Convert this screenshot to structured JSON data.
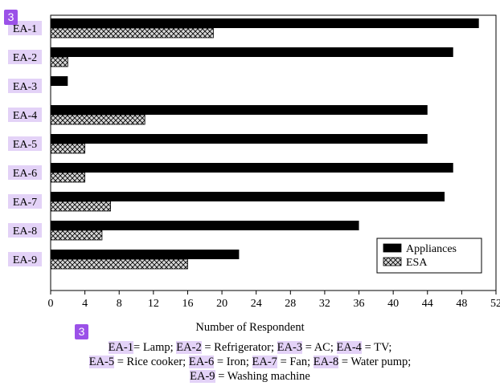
{
  "chart_data": {
    "type": "bar",
    "orientation": "horizontal",
    "categories": [
      "EA-1",
      "EA-2",
      "EA-3",
      "EA-4",
      "EA-5",
      "EA-6",
      "EA-7",
      "EA-8",
      "EA-9"
    ],
    "series": [
      {
        "name": "Appliances",
        "values": [
          50,
          47,
          2,
          44,
          44,
          47,
          46,
          36,
          22
        ],
        "color": "#000000"
      },
      {
        "name": "ESA",
        "values": [
          19,
          2,
          0,
          11,
          4,
          4,
          7,
          6,
          16
        ],
        "color": "#cfcfcf",
        "pattern": "crosshatch"
      }
    ],
    "xlabel": "Number of Respondent",
    "ylabel": "",
    "xlim": [
      0,
      52
    ],
    "xticks": [
      0,
      4,
      8,
      12,
      16,
      20,
      24,
      28,
      32,
      36,
      40,
      44,
      48,
      52
    ],
    "legend": "bottom-right",
    "grid": false
  },
  "badges": {
    "top": "3",
    "caption": "3"
  },
  "caption": {
    "lines": [
      [
        {
          "t": "EA-1",
          "hl": true
        },
        {
          "t": "= Lamp; "
        },
        {
          "t": "EA-2",
          "hl": true
        },
        {
          "t": " = Refrigerator; "
        },
        {
          "t": "EA-3",
          "hl": true
        },
        {
          "t": " = AC; "
        },
        {
          "t": "EA-4",
          "hl": true
        },
        {
          "t": "  = TV;"
        }
      ],
      [
        {
          "t": "EA-5",
          "hl": true
        },
        {
          "t": " = Rice cooker; "
        },
        {
          "t": "EA-6",
          "hl": true
        },
        {
          "t": " = Iron; "
        },
        {
          "t": "EA-7",
          "hl": true
        },
        {
          "t": " = Fan; "
        },
        {
          "t": "EA-8",
          "hl": true
        },
        {
          "t": " = Water pump;"
        }
      ],
      [
        {
          "t": "EA-9",
          "hl": true
        },
        {
          "t": " = Washing machine"
        }
      ]
    ]
  }
}
